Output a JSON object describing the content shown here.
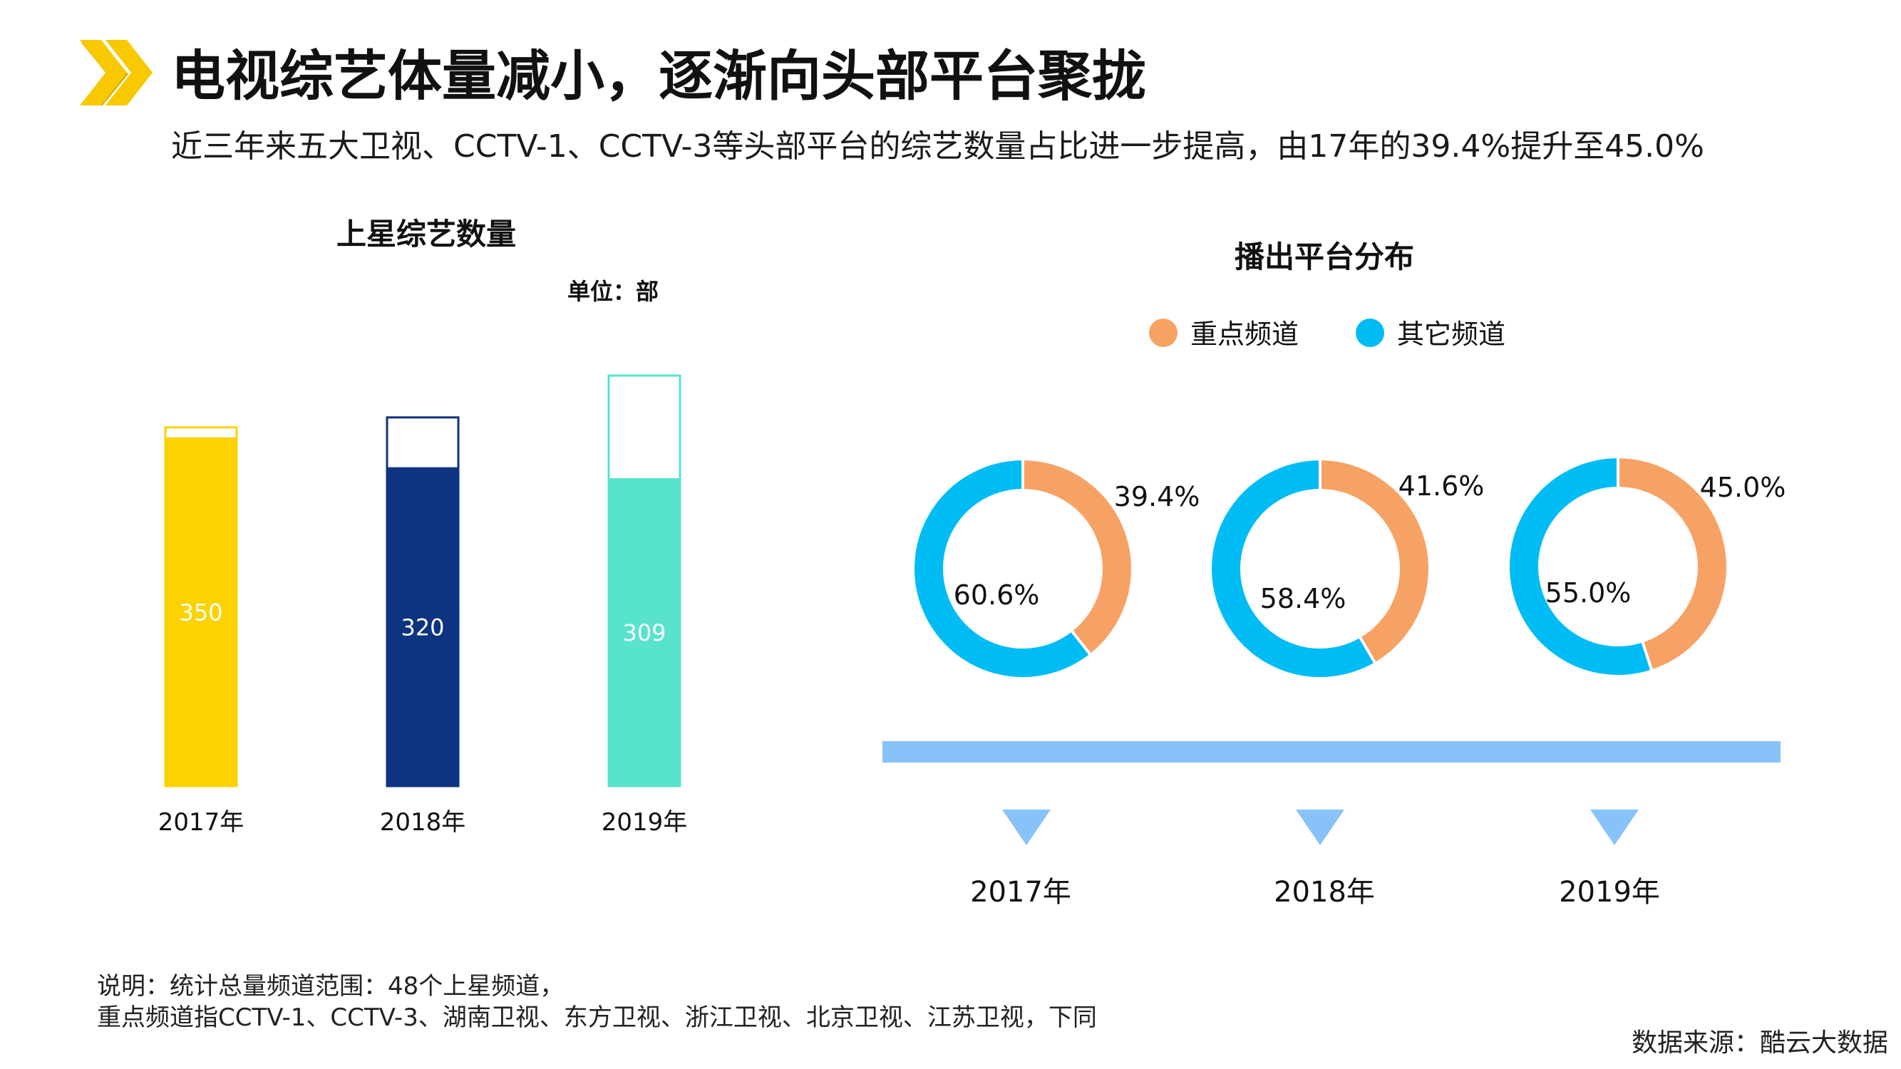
{
  "header": {
    "title": "电视综艺体量减小，逐渐向头部平台聚拢",
    "subtitle": "近三年来五大卫视、CCTV-1、CCTV-3等头部平台的综艺数量占比进一步提高，由17年的39.4%提升至45.0%",
    "logo_icon": "double-chevron-right-icon",
    "logo_color": "#F8C800"
  },
  "chart_data": [
    {
      "type": "bar",
      "title": "上星综艺数量",
      "unit_label": "单位：部",
      "categories": [
        "2017年",
        "2018年",
        "2019年"
      ],
      "values": [
        350,
        320,
        309
      ],
      "value_labels": [
        "350",
        "320",
        "309"
      ],
      "outline_values": [
        360,
        370,
        412
      ],
      "colors": [
        "#FCD200",
        "#0E3380",
        "#57E3CD"
      ],
      "ylim": [
        0,
        412
      ],
      "grid": false,
      "legend": "none"
    },
    {
      "type": "pie",
      "title": "播出平台分布",
      "donut": true,
      "categories": [
        "2017年",
        "2018年",
        "2019年"
      ],
      "series": [
        {
          "name": "重点频道",
          "values": [
            39.4,
            41.6,
            45.0
          ],
          "labels": [
            "39.4%",
            "41.6%",
            "45.0%"
          ],
          "color": "#F7A265"
        },
        {
          "name": "其它频道",
          "values": [
            60.6,
            58.4,
            55.0
          ],
          "labels": [
            "60.6%",
            "58.4%",
            "55.0%"
          ],
          "color": "#00BCF5"
        }
      ],
      "legend": "top-center",
      "timeline_color": "#87C2F9"
    }
  ],
  "footer": {
    "note_lines": [
      "说明：统计总量频道范围：48个上星频道，",
      "重点频道指CCTV-1、CCTV-3、湖南卫视、东方卫视、浙江卫视、北京卫视、江苏卫视，下同"
    ],
    "source": "数据来源：酷云大数据"
  }
}
